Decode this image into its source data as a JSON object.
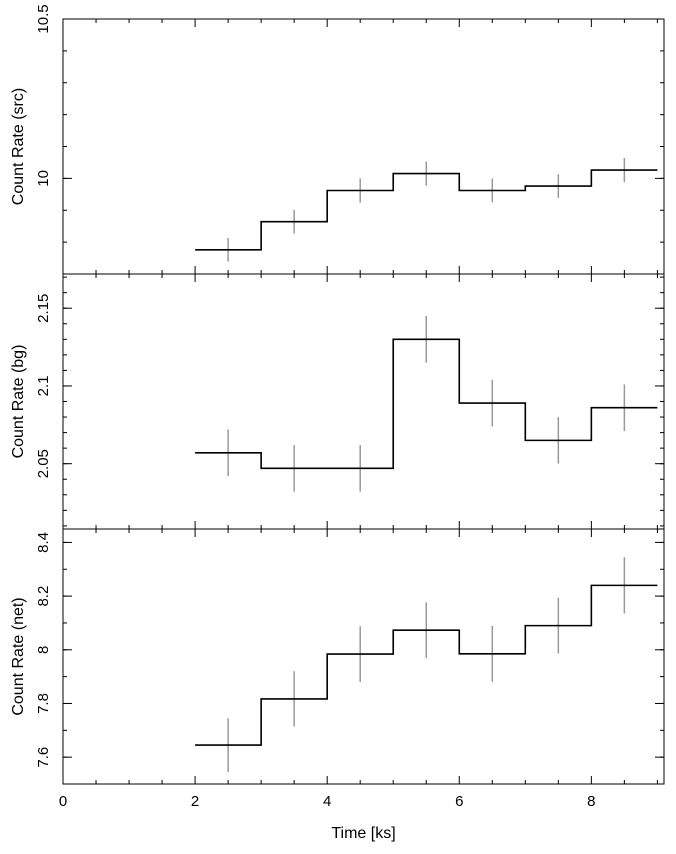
{
  "chart_data": [
    {
      "type": "line",
      "step": true,
      "panel": "src",
      "ylabel": "Count Rate (src)",
      "xlabel": "",
      "xlim": [
        0,
        9.1
      ],
      "ylim": [
        9.7,
        10.5
      ],
      "yticks": [
        10,
        10.5
      ],
      "ytick_labels": [
        "10",
        "10.5"
      ],
      "bin_edges": [
        2,
        3,
        4,
        5,
        6,
        7,
        8,
        9
      ],
      "x": [
        2.5,
        3.5,
        4.5,
        5.5,
        6.5,
        7.5,
        8.5
      ],
      "values": [
        9.776,
        9.864,
        9.962,
        10.015,
        9.962,
        9.976,
        10.026
      ],
      "errors": [
        0.037,
        0.037,
        0.038,
        0.038,
        0.037,
        0.037,
        0.038
      ],
      "line_color": "#000000",
      "error_color": "#999999"
    },
    {
      "type": "line",
      "step": true,
      "panel": "bg",
      "ylabel": "Count Rate (bg)",
      "xlabel": "",
      "xlim": [
        0,
        9.1
      ],
      "ylim": [
        2.008,
        2.172
      ],
      "yticks": [
        2.05,
        2.1,
        2.15
      ],
      "ytick_labels": [
        "2.05",
        "2.1",
        "2.15"
      ],
      "bin_edges": [
        2,
        3,
        4,
        5,
        6,
        7,
        8,
        9
      ],
      "x": [
        2.5,
        3.5,
        4.5,
        5.5,
        6.5,
        7.5,
        8.5
      ],
      "values": [
        2.057,
        2.047,
        2.047,
        2.13,
        2.089,
        2.065,
        2.086
      ],
      "errors": [
        0.015,
        0.015,
        0.015,
        0.015,
        0.015,
        0.015,
        0.015
      ],
      "line_color": "#000000",
      "error_color": "#999999"
    },
    {
      "type": "line",
      "step": true,
      "panel": "net",
      "ylabel": "Count Rate (net)",
      "xlabel": "Time [ks]",
      "xlim": [
        0,
        9.1
      ],
      "ylim": [
        7.5,
        8.45
      ],
      "yticks": [
        7.6,
        7.8,
        8,
        8.2,
        8.4
      ],
      "ytick_labels": [
        "7.6",
        "7.8",
        "8",
        "8.2",
        "8.4"
      ],
      "xticks": [
        0,
        2,
        4,
        6,
        8
      ],
      "xtick_labels": [
        "0",
        "2",
        "4",
        "6",
        "8"
      ],
      "bin_edges": [
        2,
        3,
        4,
        5,
        6,
        7,
        8,
        9
      ],
      "x": [
        2.5,
        3.5,
        4.5,
        5.5,
        6.5,
        7.5,
        8.5
      ],
      "values": [
        7.645,
        7.817,
        7.984,
        8.073,
        7.985,
        8.09,
        8.24
      ],
      "errors": [
        0.1,
        0.103,
        0.104,
        0.104,
        0.104,
        0.104,
        0.105
      ],
      "line_color": "#000000",
      "error_color": "#999999"
    }
  ]
}
